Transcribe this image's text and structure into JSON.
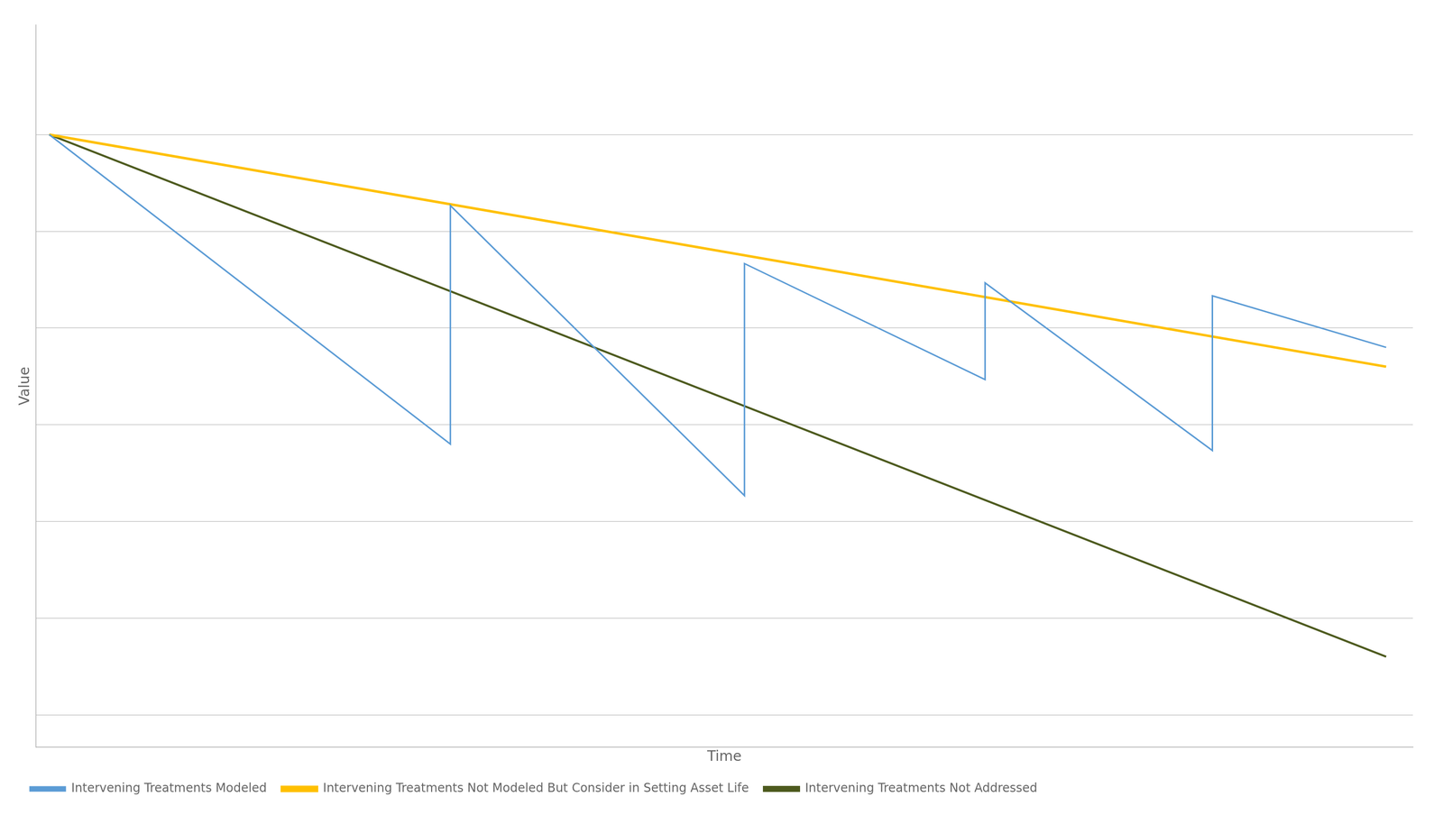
{
  "chart_data": {
    "type": "line",
    "x_label": "Time",
    "y_label": "Value",
    "series": [
      {
        "name": "Intervening Treatments Modeled",
        "color": "#5b9bd5",
        "x": [
          0.0,
          0.3,
          0.3,
          0.52,
          0.52,
          0.7,
          0.7,
          0.87,
          0.87,
          1.0
        ],
        "values": [
          0.93,
          0.45,
          0.82,
          0.37,
          0.73,
          0.55,
          0.7,
          0.44,
          0.68,
          0.6
        ]
      },
      {
        "name": "Intervening Treatments Not Modeled But Consider in Setting Asset Life",
        "color": "#ffc000",
        "x": [
          0.0,
          1.0
        ],
        "values": [
          0.93,
          0.57
        ]
      },
      {
        "name": "Intervening Treatments Not Addressed",
        "color": "#4d5a1e",
        "x": [
          0.0,
          1.0
        ],
        "values": [
          0.93,
          0.12
        ]
      }
    ],
    "xlim": [
      -0.01,
      1.02
    ],
    "ylim": [
      -0.02,
      1.1
    ],
    "xticks": [],
    "yticks": [
      0.93,
      0.78,
      0.63,
      0.48,
      0.33,
      0.18,
      0.03
    ],
    "grid": "y",
    "tick_labels": false,
    "legend": "bottom"
  }
}
